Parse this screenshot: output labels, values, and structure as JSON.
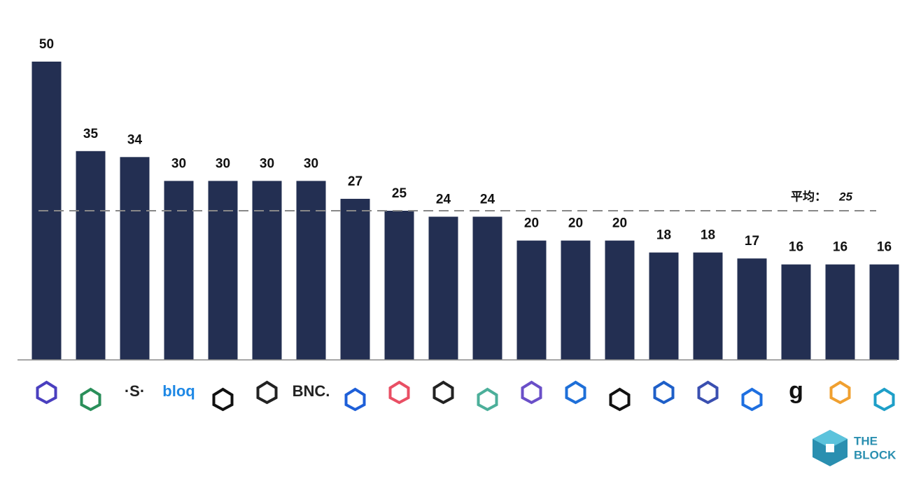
{
  "chart_data": {
    "type": "bar",
    "categories": [
      null,
      null,
      "·S·",
      "bloq",
      null,
      null,
      "BNC.",
      null,
      null,
      null,
      null,
      null,
      null,
      null,
      null,
      null,
      null,
      "g",
      null,
      null
    ],
    "values": [
      50,
      35,
      34,
      30,
      30,
      30,
      30,
      27,
      25,
      24,
      24,
      20,
      20,
      20,
      18,
      18,
      17,
      16,
      16,
      16
    ],
    "color": "#232f52",
    "average": {
      "label": "平均：",
      "value": 25
    },
    "watermark": [
      "THE",
      "BLOCK"
    ]
  }
}
